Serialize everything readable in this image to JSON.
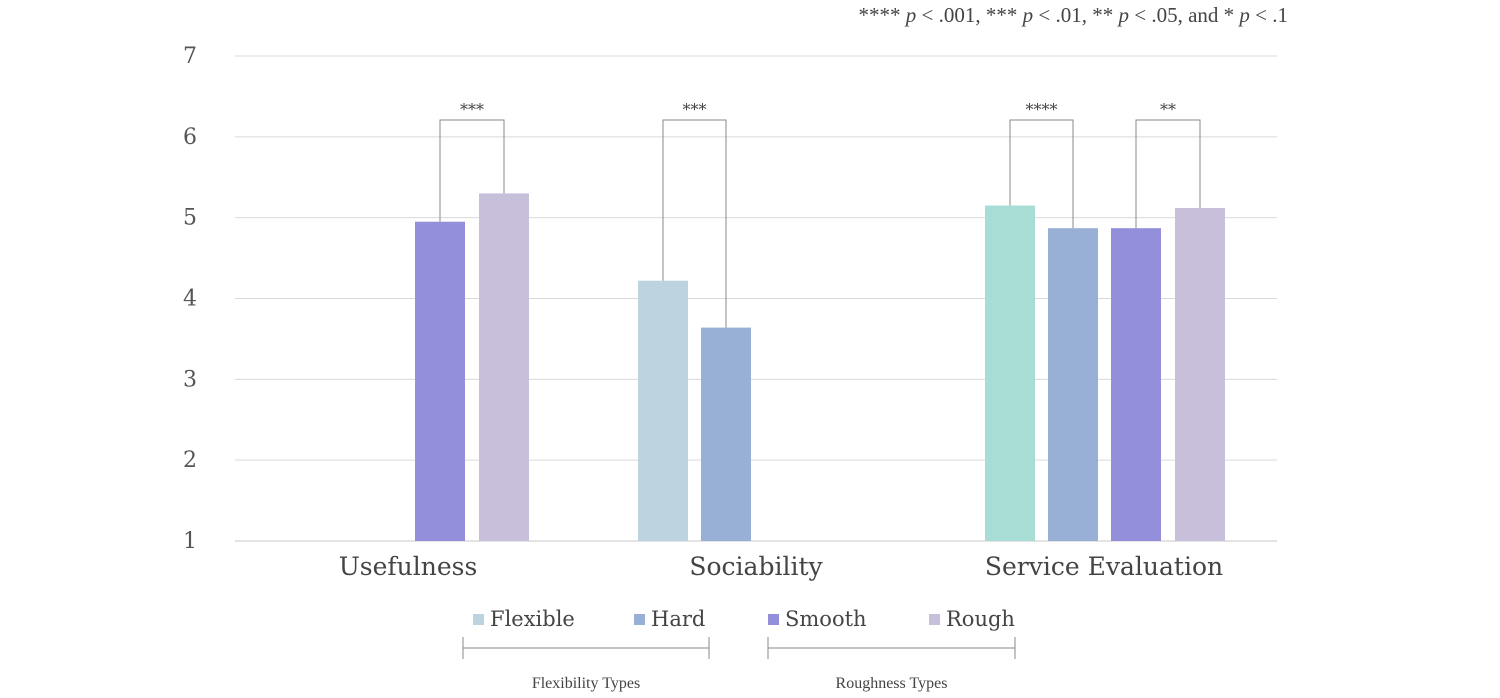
{
  "chart_data": {
    "type": "bar",
    "note": "**** p < .001, *** p < .01, ** p < .05, and * p < .1",
    "note_parts": [
      {
        "text": "**** ",
        "italic": false
      },
      {
        "text": "p",
        "italic": true
      },
      {
        "text": " < .001, *** ",
        "italic": false
      },
      {
        "text": "p",
        "italic": true
      },
      {
        "text": " < .01, ** ",
        "italic": false
      },
      {
        "text": "p",
        "italic": true
      },
      {
        "text": " < .05, and * ",
        "italic": false
      },
      {
        "text": "p",
        "italic": true
      },
      {
        "text": " < .1",
        "italic": false
      }
    ],
    "ylim": [
      1,
      7
    ],
    "yticks": [
      1,
      2,
      3,
      4,
      5,
      6,
      7
    ],
    "grid": true,
    "categories": [
      "Usefulness",
      "Sociability",
      "Service Evaluation"
    ],
    "bars": [
      {
        "category": "Usefulness",
        "series": "Smooth",
        "value": 4.95
      },
      {
        "category": "Usefulness",
        "series": "Rough",
        "value": 5.3
      },
      {
        "category": "Sociability",
        "series": "Flexible",
        "value": 4.22
      },
      {
        "category": "Sociability",
        "series": "Hard",
        "value": 3.64
      },
      {
        "category": "Service Evaluation",
        "series": "Flexible",
        "value": 5.15
      },
      {
        "category": "Service Evaluation",
        "series": "Hard",
        "value": 4.87
      },
      {
        "category": "Service Evaluation",
        "series": "Smooth",
        "value": 4.87
      },
      {
        "category": "Service Evaluation",
        "series": "Rough",
        "value": 5.12
      }
    ],
    "series_colors": {
      "Flexible": "#BDD4E0",
      "Hard": "#99B0D6",
      "Smooth": "#938FDB",
      "Rough": "#C8BFDB"
    },
    "service_flexible_color": "#A8DDD5",
    "legend": {
      "position": "bottom",
      "items": [
        "Flexible",
        "Hard",
        "Smooth",
        "Rough"
      ],
      "groups": [
        {
          "label": "Flexibility Types",
          "items": [
            "Flexible",
            "Hard"
          ]
        },
        {
          "label": "Roughness Types",
          "items": [
            "Smooth",
            "Rough"
          ]
        }
      ]
    },
    "significance": [
      {
        "category": "Usefulness",
        "bars": [
          0,
          1
        ],
        "label": "***"
      },
      {
        "category": "Sociability",
        "bars": [
          2,
          3
        ],
        "label": "***"
      },
      {
        "category": "Service Evaluation",
        "bars": [
          4,
          5
        ],
        "label": "****"
      },
      {
        "category": "Service Evaluation",
        "bars": [
          6,
          7
        ],
        "label": "**"
      }
    ]
  }
}
